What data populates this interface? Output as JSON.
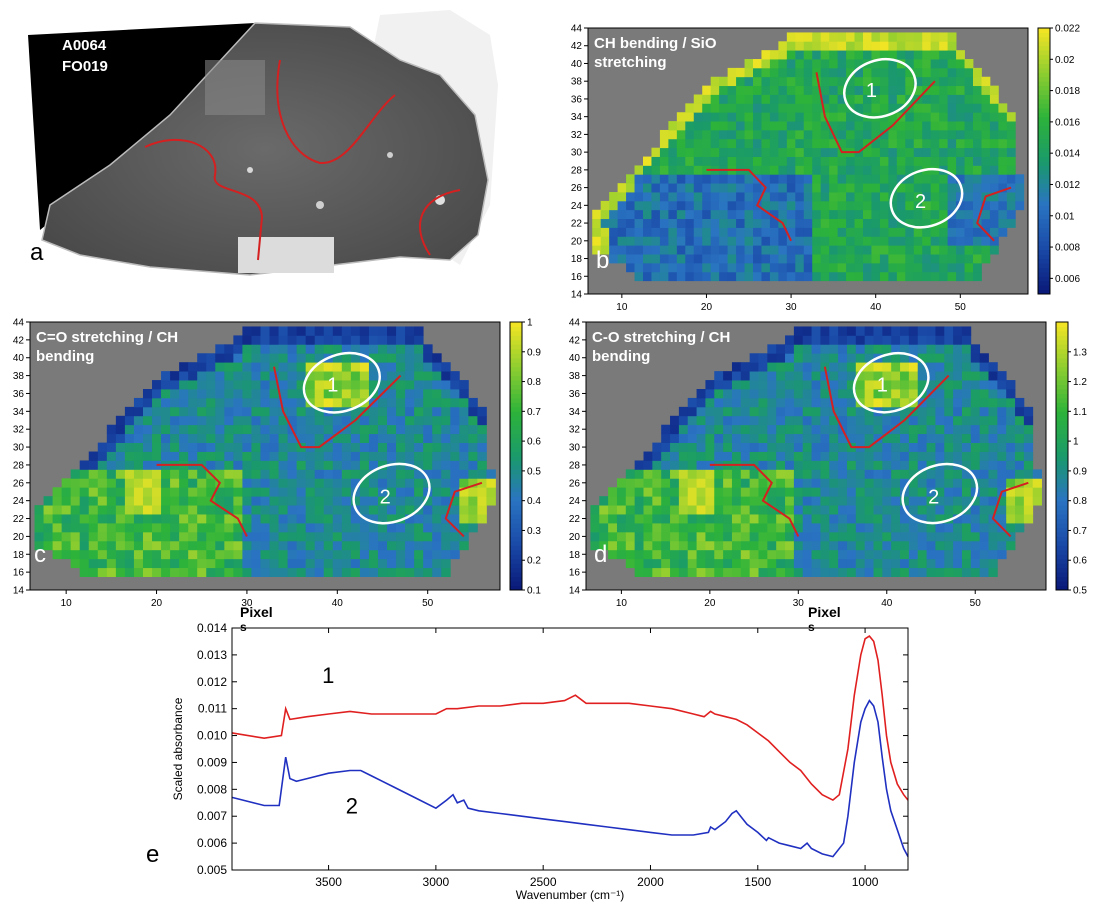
{
  "panel_letters": {
    "a": "a",
    "b": "b",
    "c": "c",
    "d": "d",
    "e": "e"
  },
  "sample": {
    "line1": "A0064",
    "line2": "FO019"
  },
  "map_titles": {
    "b": [
      "CH bending / SiO",
      "stretching"
    ],
    "c": [
      "C=O stretching / CH",
      "bending"
    ],
    "d": [
      "C-O stretching / CH",
      "bending"
    ]
  },
  "region_labels": [
    "1",
    "2"
  ],
  "axis_text": {
    "pixel_c": "Pixel",
    "pixel_d": "Pixel",
    "s_c": "s",
    "s_d": "s"
  },
  "colors": {
    "map_background": "#7a7a7a",
    "boundary": "#d42020",
    "region_outline": "#ffffff",
    "colormap": [
      "#0a1a7a",
      "#1a4aa8",
      "#2a74c2",
      "#1a9a6a",
      "#2db33a",
      "#8ccd30",
      "#f0e424"
    ]
  },
  "chart_data": [
    {
      "type": "heatmap",
      "title": "CH bending / SiO stretching",
      "x_ticks": [
        10,
        20,
        30,
        40,
        50
      ],
      "y_ticks": [
        14,
        16,
        18,
        20,
        22,
        24,
        26,
        28,
        30,
        32,
        34,
        36,
        38,
        40,
        42,
        44
      ],
      "xlim": [
        6,
        58
      ],
      "ylim": [
        14,
        44
      ],
      "colorbar_ticks": [
        "0.006",
        "0.008",
        "0.01",
        "0.012",
        "0.014",
        "0.016",
        "0.018",
        "0.02",
        "0.022"
      ],
      "clim": [
        0.005,
        0.022
      ]
    },
    {
      "type": "heatmap",
      "title": "C=O stretching / CH bending",
      "x_ticks": [
        10,
        20,
        30,
        40,
        50
      ],
      "y_ticks": [
        14,
        16,
        18,
        20,
        22,
        24,
        26,
        28,
        30,
        32,
        34,
        36,
        38,
        40,
        42,
        44
      ],
      "xlim": [
        6,
        58
      ],
      "ylim": [
        14,
        44
      ],
      "xlabel": "Pixel",
      "colorbar_ticks": [
        "0.1",
        "0.2",
        "0.3",
        "0.4",
        "0.5",
        "0.6",
        "0.7",
        "0.8",
        "0.9",
        "1"
      ],
      "clim": [
        0.1,
        1.0
      ]
    },
    {
      "type": "heatmap",
      "title": "C-O stretching / CH bending",
      "x_ticks": [
        10,
        20,
        30,
        40,
        50
      ],
      "y_ticks": [
        14,
        16,
        18,
        20,
        22,
        24,
        26,
        28,
        30,
        32,
        34,
        36,
        38,
        40,
        42,
        44
      ],
      "xlim": [
        6,
        58
      ],
      "ylim": [
        14,
        44
      ],
      "xlabel": "Pixel",
      "colorbar_ticks": [
        "0.5",
        "0.6",
        "0.7",
        "0.8",
        "0.9",
        "1",
        "1.1",
        "1.2",
        "1.3"
      ],
      "clim": [
        0.5,
        1.4
      ]
    },
    {
      "type": "line",
      "xlabel": "Wavenumber (cm⁻¹)",
      "ylabel": "Scaled absorbance",
      "xlim": [
        3950,
        800
      ],
      "ylim": [
        0.005,
        0.014
      ],
      "x_ticks": [
        "3500",
        "3000",
        "2500",
        "2000",
        "1500",
        "1000"
      ],
      "y_ticks": [
        "0.005",
        "0.006",
        "0.007",
        "0.008",
        "0.009",
        "0.010",
        "0.011",
        "0.012",
        "0.013",
        "0.014"
      ],
      "series": [
        {
          "name": "1",
          "color": "#e02020",
          "x": [
            3950,
            3800,
            3720,
            3700,
            3680,
            3600,
            3500,
            3400,
            3300,
            3200,
            3100,
            3000,
            2950,
            2900,
            2800,
            2700,
            2600,
            2500,
            2400,
            2350,
            2300,
            2200,
            2100,
            2000,
            1900,
            1800,
            1750,
            1720,
            1700,
            1650,
            1600,
            1550,
            1500,
            1450,
            1400,
            1350,
            1300,
            1250,
            1200,
            1150,
            1120,
            1080,
            1050,
            1020,
            1000,
            980,
            960,
            940,
            920,
            900,
            880,
            850,
            820,
            800
          ],
          "y": [
            0.0101,
            0.0099,
            0.01,
            0.011,
            0.0106,
            0.0107,
            0.0108,
            0.0109,
            0.0108,
            0.0108,
            0.0108,
            0.0108,
            0.011,
            0.011,
            0.0111,
            0.0111,
            0.0112,
            0.0112,
            0.0113,
            0.0115,
            0.0112,
            0.0112,
            0.0112,
            0.0111,
            0.011,
            0.0108,
            0.0107,
            0.0109,
            0.0108,
            0.0107,
            0.0106,
            0.0104,
            0.0101,
            0.0098,
            0.0094,
            0.009,
            0.0087,
            0.0082,
            0.0078,
            0.0076,
            0.0078,
            0.0095,
            0.0115,
            0.013,
            0.0136,
            0.0137,
            0.0135,
            0.0128,
            0.0115,
            0.01,
            0.009,
            0.0082,
            0.0078,
            0.0076
          ]
        },
        {
          "name": "2",
          "color": "#2030c0",
          "x": [
            3950,
            3800,
            3730,
            3700,
            3680,
            3650,
            3600,
            3500,
            3400,
            3350,
            3300,
            3200,
            3100,
            3000,
            2950,
            2920,
            2900,
            2870,
            2850,
            2800,
            2700,
            2600,
            2500,
            2400,
            2300,
            2200,
            2100,
            2000,
            1900,
            1800,
            1730,
            1720,
            1700,
            1650,
            1620,
            1600,
            1580,
            1550,
            1500,
            1460,
            1450,
            1400,
            1350,
            1300,
            1270,
            1250,
            1200,
            1150,
            1100,
            1080,
            1050,
            1020,
            1000,
            980,
            960,
            940,
            920,
            900,
            880,
            850,
            820,
            800
          ],
          "y": [
            0.0077,
            0.0074,
            0.0074,
            0.0092,
            0.0084,
            0.0083,
            0.0084,
            0.0086,
            0.0087,
            0.0087,
            0.0085,
            0.0081,
            0.0077,
            0.0073,
            0.0076,
            0.0078,
            0.0075,
            0.0076,
            0.0073,
            0.0072,
            0.0071,
            0.007,
            0.0069,
            0.0068,
            0.0067,
            0.0066,
            0.0065,
            0.0064,
            0.0063,
            0.0063,
            0.0064,
            0.0066,
            0.0065,
            0.0068,
            0.0071,
            0.0072,
            0.007,
            0.0067,
            0.0064,
            0.0061,
            0.0062,
            0.006,
            0.0059,
            0.0058,
            0.006,
            0.0058,
            0.0056,
            0.0055,
            0.006,
            0.007,
            0.009,
            0.0105,
            0.011,
            0.0113,
            0.0111,
            0.0105,
            0.0092,
            0.008,
            0.0072,
            0.0065,
            0.0058,
            0.0055
          ]
        }
      ],
      "series_labels": [
        "1",
        "2"
      ]
    }
  ]
}
